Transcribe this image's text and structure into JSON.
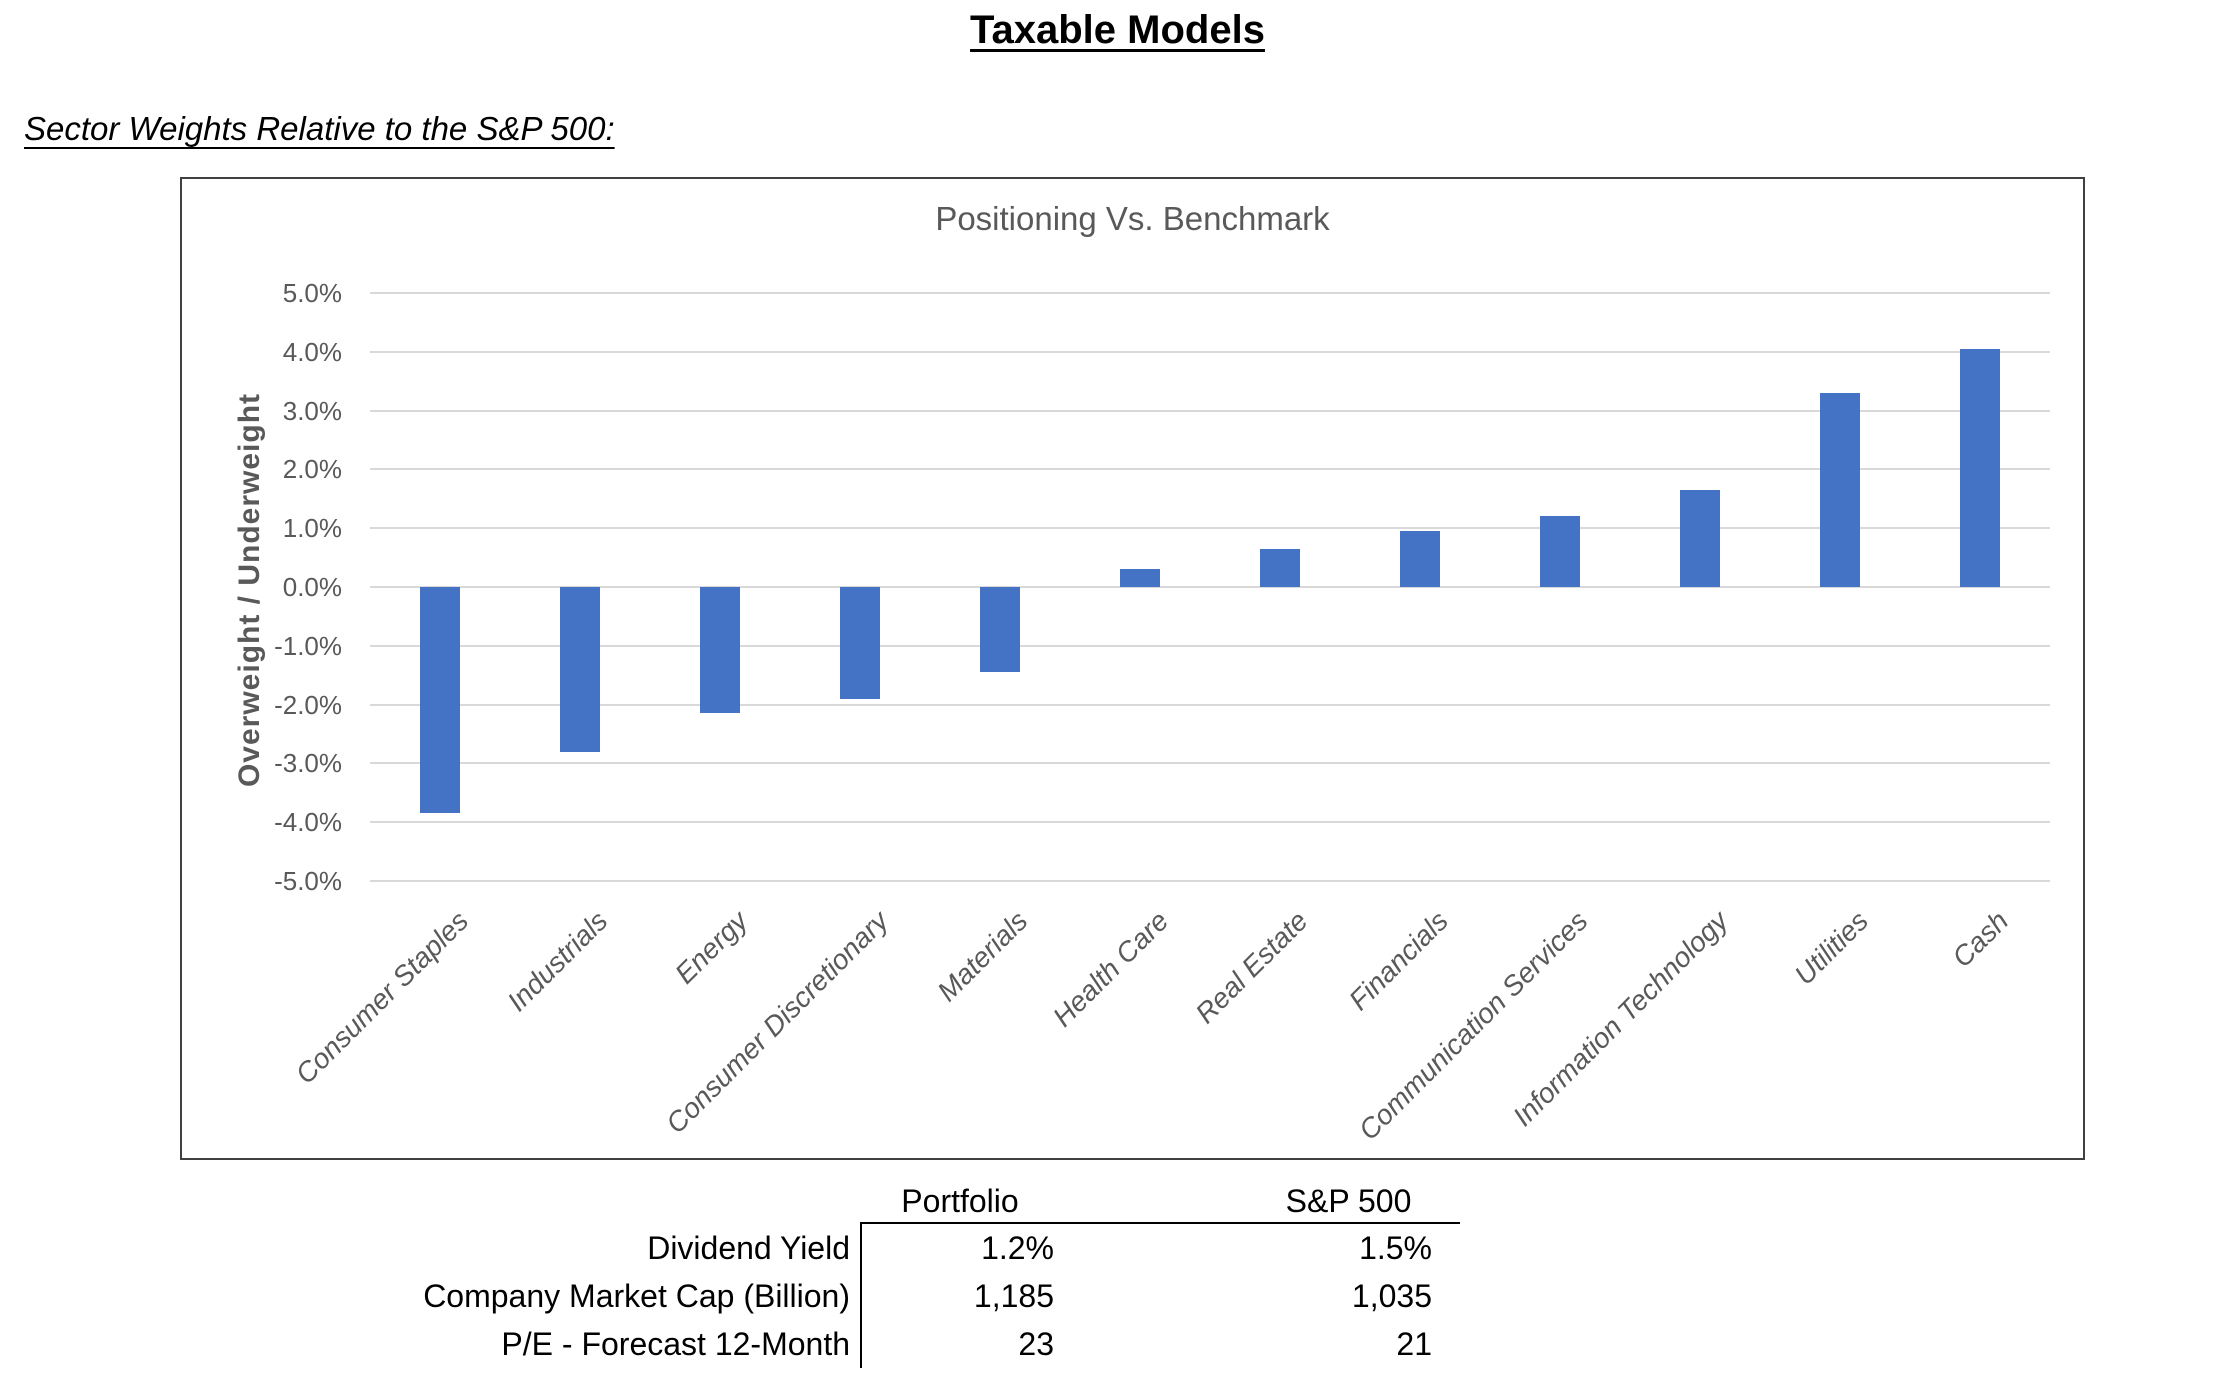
{
  "page": {
    "title": "Taxable Models",
    "subtitle": "Sector Weights Relative to the S&P 500:"
  },
  "chart_data": {
    "type": "bar",
    "title": "Positioning Vs. Benchmark",
    "xlabel": "",
    "ylabel": "Overweight / Underweight",
    "categories": [
      "Consumer Staples",
      "Industrials",
      "Energy",
      "Consumer Discretionary",
      "Materials",
      "Health Care",
      "Real Estate",
      "Financials",
      "Communication Services",
      "Information Technology",
      "Utilities",
      "Cash"
    ],
    "values": [
      -3.85,
      -2.8,
      -2.15,
      -1.9,
      -1.45,
      0.3,
      0.65,
      0.95,
      1.2,
      1.65,
      3.3,
      4.05
    ],
    "value_unit": "percent",
    "ylim": [
      -5,
      5
    ],
    "ytick_step": 1,
    "ytick_labels": [
      "5.0%",
      "4.0%",
      "3.0%",
      "2.0%",
      "1.0%",
      "0.0%",
      "-1.0%",
      "-2.0%",
      "-3.0%",
      "-4.0%",
      "-5.0%"
    ],
    "grid": true,
    "legend": "none",
    "bar_color": "#4472C4",
    "gridline_color": "#D9D9D9",
    "axis_text_color": "#595959"
  },
  "table": {
    "headers": [
      "Portfolio",
      "S&P 500"
    ],
    "rows": [
      {
        "label": "Dividend Yield",
        "portfolio": "1.2%",
        "sp500": "1.5%"
      },
      {
        "label": "Company Market Cap (Billion)",
        "portfolio": "1,185",
        "sp500": "1,035"
      },
      {
        "label": "P/E - Forecast 12-Month",
        "portfolio": "23",
        "sp500": "21"
      }
    ]
  }
}
